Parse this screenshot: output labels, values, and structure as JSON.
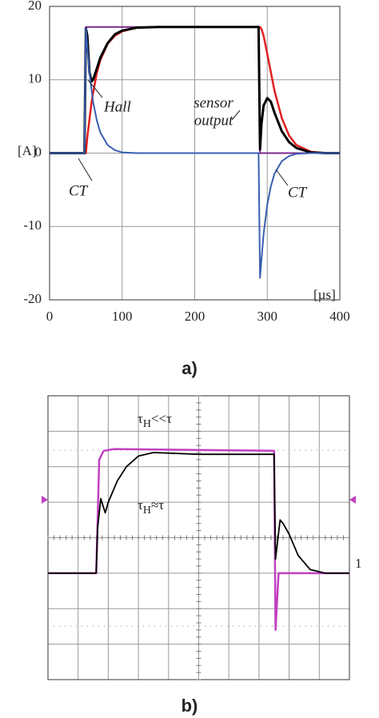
{
  "chart_data": [
    {
      "type": "line",
      "caption": "a)",
      "y_unit": "[A]",
      "x_unit": "[µs]",
      "xlim": [
        0,
        400
      ],
      "ylim": [
        -20,
        20
      ],
      "xticks": [
        0,
        100,
        200,
        300,
        400
      ],
      "yticks": [
        20,
        10,
        0,
        -10,
        -20
      ],
      "grid": true,
      "x": [
        0,
        48,
        50,
        52,
        55,
        58,
        60,
        65,
        70,
        80,
        90,
        100,
        120,
        150,
        200,
        250,
        288,
        290,
        292,
        295,
        300,
        305,
        310,
        320,
        330,
        340,
        360,
        380,
        400
      ],
      "series": [
        {
          "color": "#7b2a8e",
          "width": 2,
          "values": [
            0,
            0,
            17.2,
            17.2,
            17.2,
            17.2,
            17.2,
            17.2,
            17.2,
            17.2,
            17.2,
            17.2,
            17.2,
            17.2,
            17.2,
            17.2,
            17.2,
            0,
            0,
            0,
            0,
            0,
            0,
            0,
            0,
            0,
            0,
            0,
            0
          ]
        },
        {
          "color": "#e02020",
          "width": 2.5,
          "values": [
            0,
            0,
            0,
            2.2,
            4.6,
            7,
            8.2,
            10.9,
            12.7,
            14.9,
            16,
            16.6,
            17.1,
            17.2,
            17.2,
            17.2,
            17.2,
            17.2,
            16.9,
            16,
            13.5,
            11,
            8.5,
            4.8,
            2.4,
            1.1,
            0.2,
            0,
            0
          ]
        },
        {
          "color": "#000000",
          "width": 3,
          "values": [
            0,
            0,
            17,
            16,
            11,
            9.8,
            10,
            11.5,
            13,
            15,
            16.2,
            16.7,
            17.1,
            17.2,
            17.2,
            17.2,
            17.2,
            0.5,
            4,
            6.5,
            7.5,
            7,
            5.5,
            3,
            1.5,
            0.7,
            0.1,
            0,
            0
          ]
        },
        {
          "color": "#3a5fb0",
          "width": 2,
          "values": [
            0,
            0,
            17,
            14.5,
            11,
            8.5,
            7,
            4.5,
            2.8,
            1.1,
            0.4,
            0.1,
            0,
            0,
            0,
            0,
            0,
            -17,
            -14.5,
            -11,
            -7,
            -4.5,
            -2.8,
            -1.1,
            -0.4,
            -0.1,
            0,
            0,
            0
          ]
        }
      ],
      "annotations": [
        "Hall",
        "sensor",
        "output",
        "CT",
        "CT"
      ]
    },
    {
      "type": "line",
      "caption": "b)",
      "channel_label": "1",
      "xlim": [
        0,
        10
      ],
      "ylim": [
        -4,
        4
      ],
      "xticks": [
        0,
        1,
        2,
        3,
        4,
        5,
        6,
        7,
        8,
        9,
        10
      ],
      "yticks": [
        -4,
        -3,
        -2,
        -1,
        0,
        1,
        2,
        3,
        4
      ],
      "grid": true,
      "series": [
        {
          "color": "#c040c0",
          "width": 2.5,
          "x": [
            0,
            1.6,
            1.7,
            1.85,
            2.2,
            7.5,
            7.55,
            7.65,
            10
          ],
          "values": [
            -1,
            -1,
            2.2,
            2.45,
            2.5,
            2.45,
            -2.6,
            -1,
            -1
          ]
        },
        {
          "color": "#000000",
          "width": 1.8,
          "x": [
            0,
            1.6,
            1.65,
            1.75,
            1.9,
            2,
            2.3,
            2.6,
            3,
            3.5,
            5,
            7.5,
            7.55,
            7.7,
            7.8,
            8,
            8.3,
            8.7,
            9.2,
            10
          ],
          "values": [
            -1,
            -1,
            0.3,
            1.1,
            0.7,
            1,
            1.6,
            2,
            2.3,
            2.4,
            2.35,
            2.35,
            -0.6,
            0.5,
            0.4,
            0.1,
            -0.5,
            -0.9,
            -1,
            -1
          ]
        }
      ],
      "annotations": [
        {
          "symbol": "τ",
          "sub": "H",
          "rest": "<<τ"
        },
        {
          "symbol": "τ",
          "sub": "H",
          "rest": "≈τ"
        }
      ]
    }
  ]
}
